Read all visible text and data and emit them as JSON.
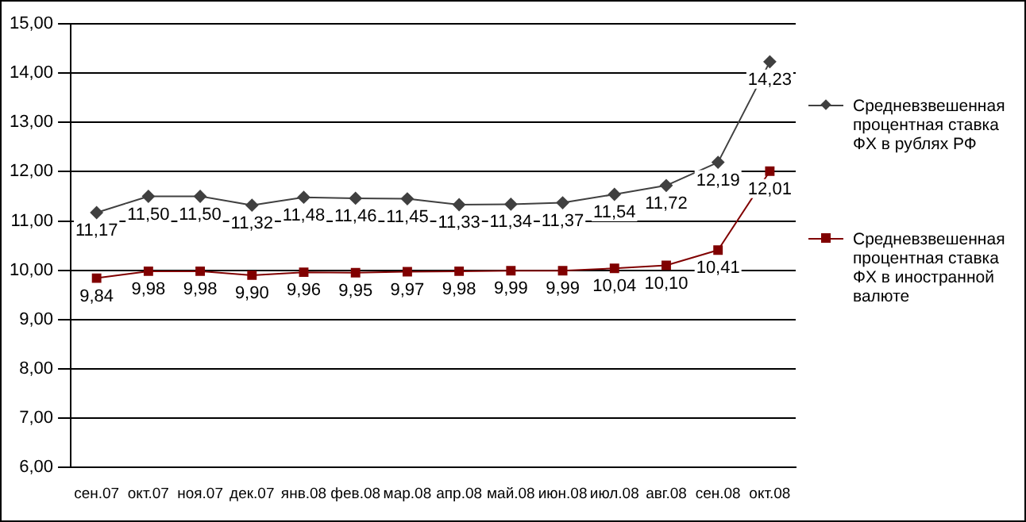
{
  "chart_data": {
    "type": "line",
    "categories": [
      "сен.07",
      "окт.07",
      "ноя.07",
      "дек.07",
      "янв.08",
      "фев.08",
      "мар.08",
      "апр.08",
      "май.08",
      "июн.08",
      "июл.08",
      "авг.08",
      "сен.08",
      "окт.08"
    ],
    "series": [
      {
        "name": "Средневзвешенная процентная ставка ФХ в рублях РФ",
        "color": "#404040",
        "marker": "diamond",
        "values": [
          11.17,
          11.5,
          11.5,
          11.32,
          11.48,
          11.46,
          11.45,
          11.33,
          11.34,
          11.37,
          11.54,
          11.72,
          12.19,
          14.23
        ],
        "value_labels": [
          "11,17",
          "11,50",
          "11,50",
          "11,32",
          "11,48",
          "11,46",
          "11,45",
          "11,33",
          "11,34",
          "11,37",
          "11,54",
          "11,72",
          "12,19",
          "14,23"
        ]
      },
      {
        "name": "Средневзвешенная процентная ставка ФХ в иностранной валюте",
        "color": "#800000",
        "marker": "square",
        "values": [
          9.84,
          9.98,
          9.98,
          9.9,
          9.96,
          9.95,
          9.97,
          9.98,
          9.99,
          9.99,
          10.04,
          10.1,
          10.41,
          12.01
        ],
        "value_labels": [
          "9,84",
          "9,98",
          "9,98",
          "9,90",
          "9,96",
          "9,95",
          "9,97",
          "9,98",
          "9,99",
          "9,99",
          "10,04",
          "10,10",
          "10,41",
          "12,01"
        ]
      }
    ],
    "ylim": [
      6,
      15
    ],
    "yticks": [
      {
        "value": 6,
        "label": "6,00"
      },
      {
        "value": 7,
        "label": "7,00"
      },
      {
        "value": 8,
        "label": "8,00"
      },
      {
        "value": 9,
        "label": "9,00"
      },
      {
        "value": 10,
        "label": "10,00"
      },
      {
        "value": 11,
        "label": "11,00"
      },
      {
        "value": 12,
        "label": "12,00"
      },
      {
        "value": 13,
        "label": "13,00"
      },
      {
        "value": 14,
        "label": "14,00"
      },
      {
        "value": 15,
        "label": "15,00"
      }
    ],
    "grid": "y",
    "legend": "right",
    "line_style": "solid"
  }
}
